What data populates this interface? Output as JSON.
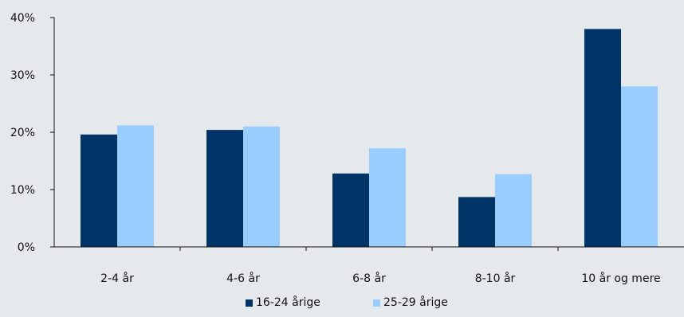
{
  "chart_data": {
    "type": "bar",
    "categories": [
      "2-4 år",
      "4-6 år",
      "6-8 år",
      "8-10 år",
      "10 år og mere"
    ],
    "series": [
      {
        "name": "16-24 årige",
        "values": [
          19.6,
          20.4,
          12.8,
          8.7,
          38.0
        ],
        "color": "#003366"
      },
      {
        "name": "25-29 årige",
        "values": [
          21.2,
          21.0,
          17.2,
          12.7,
          28.0
        ],
        "color": "#99ccff"
      }
    ],
    "yticks": [
      0,
      10,
      20,
      30,
      40
    ],
    "ytick_labels": [
      "0%",
      "10%",
      "20%",
      "30%",
      "40%"
    ],
    "ylim": [
      0,
      40
    ],
    "title": "",
    "xlabel": "",
    "ylabel": "",
    "grid": false,
    "legend_position": "bottom-center",
    "background_color": "#e6e9ec"
  }
}
